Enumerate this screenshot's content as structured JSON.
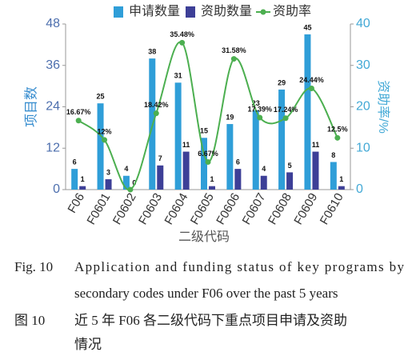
{
  "chart_data": {
    "type": "bar",
    "categories": [
      "F06",
      "F0601",
      "F0602",
      "F0603",
      "F0604",
      "F0605",
      "F0606",
      "F0607",
      "F0608",
      "F0609",
      "F0610"
    ],
    "series": [
      {
        "name": "申请数量",
        "color": "#2f9ed8",
        "values": [
          6,
          25,
          4,
          38,
          31,
          15,
          19,
          23,
          29,
          45,
          8
        ]
      },
      {
        "name": "资助数量",
        "color": "#3d3f97",
        "values": [
          1,
          3,
          0,
          7,
          11,
          1,
          6,
          4,
          5,
          11,
          1
        ]
      },
      {
        "name": "资助率",
        "type": "line",
        "axis": "y2",
        "color": "#4caf50",
        "values": [
          16.67,
          12,
          0,
          18.42,
          35.48,
          6.67,
          31.58,
          17.39,
          17.24,
          24.44,
          12.5
        ],
        "value_labels": [
          "16.67%",
          "12%",
          null,
          "18.42%",
          "35.48%",
          "6.67%",
          "31.58%",
          "17.39%",
          "17.24%",
          "24.44%",
          "12.5%"
        ]
      }
    ],
    "ylim": [
      0,
      48
    ],
    "yticks": [
      0,
      12,
      24,
      36,
      48
    ],
    "y2lim": [
      0,
      40
    ],
    "y2ticks": [
      0,
      10,
      20,
      30,
      40
    ],
    "ylabel": "项目数",
    "y2label": "资助率/%",
    "xlabel": "二级代码"
  },
  "caption": {
    "en_label": "Fig. 10",
    "en": [
      "Application and funding status of key programs by",
      "secondary codes under F06 over the past 5 years"
    ],
    "zh_label": "图 10",
    "zh": [
      "近 5 年 F06 各二级代码下重点项目申请及资助",
      "情况"
    ]
  }
}
